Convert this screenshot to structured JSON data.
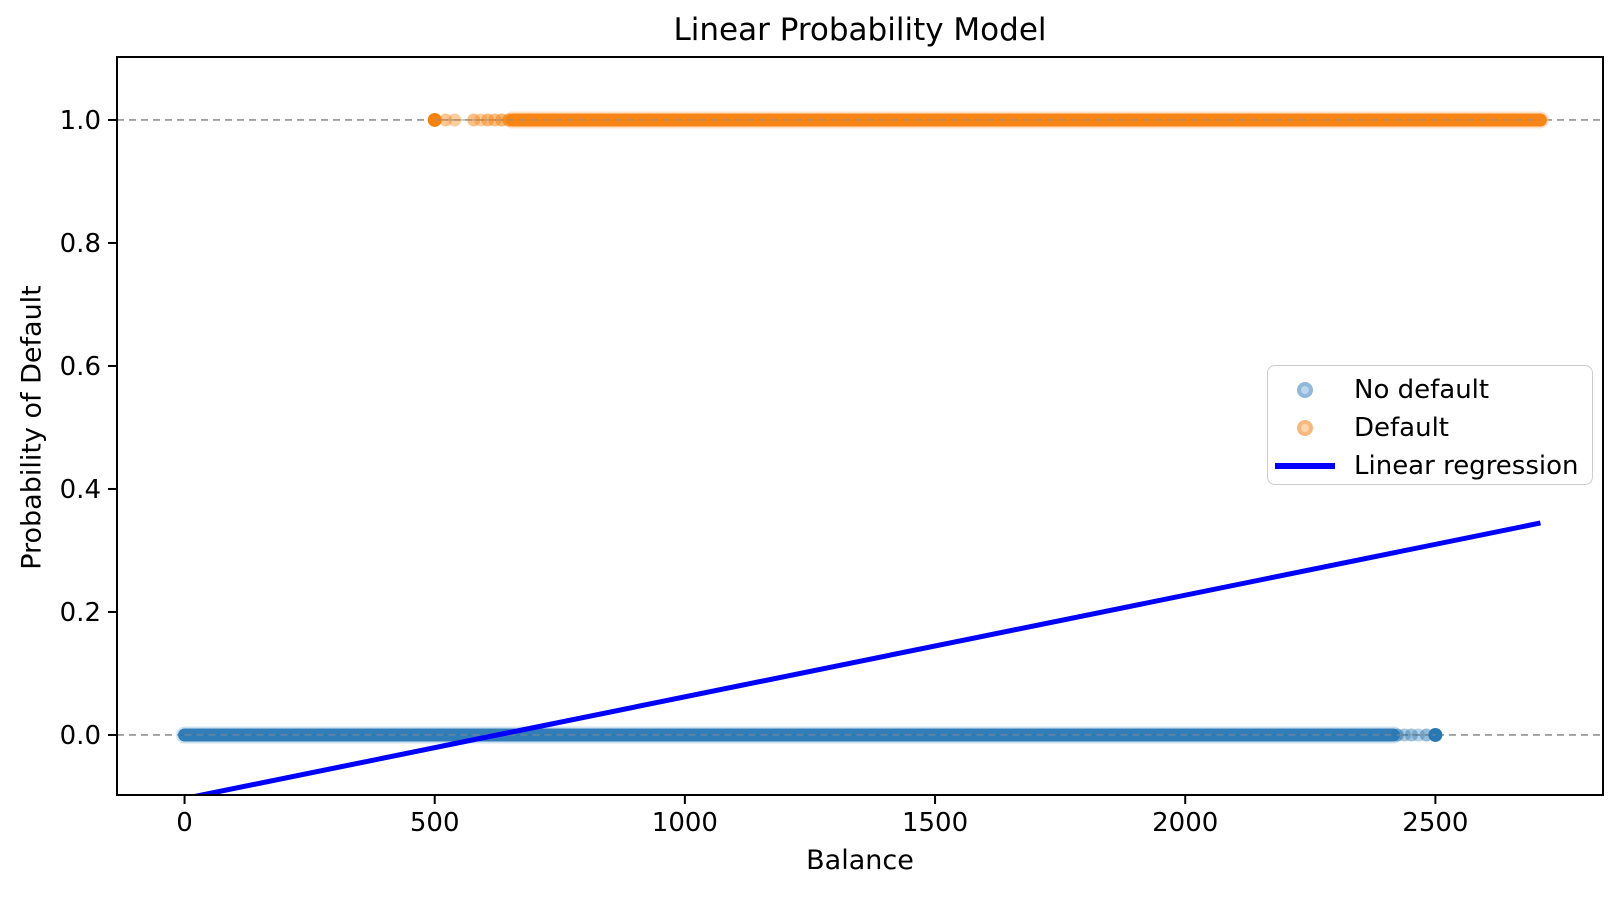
{
  "chart_data": {
    "type": "scatter",
    "title": "Linear Probability Model",
    "xlabel": "Balance",
    "ylabel": "Probability of Default",
    "xlim": [
      -135,
      2835
    ],
    "ylim": [
      -0.0976,
      1.1024
    ],
    "x_ticks": [
      0,
      500,
      1000,
      1500,
      2000,
      2500
    ],
    "x_tick_labels": [
      "0",
      "500",
      "1000",
      "1500",
      "2000",
      "2500"
    ],
    "y_ticks": [
      0.0,
      0.2,
      0.4,
      0.6,
      0.8,
      1.0
    ],
    "y_tick_labels": [
      "0.0",
      "0.2",
      "0.4",
      "0.6",
      "0.8",
      "1.0"
    ],
    "grid": "dashed horizontal lines at y=0 and y=1 only",
    "gridlines_y": [
      0.0,
      1.0
    ],
    "colors": {
      "no_default": "#2878b4",
      "no_default_halo": "#96c0de",
      "default": "#f8820e",
      "default_halo": "#fbbf87",
      "regression_line": "#0000ff",
      "gridline": "#909090",
      "spine": "#000000"
    },
    "series": [
      {
        "name": "No default",
        "y": 0,
        "marker": "dot-strip",
        "color": "#2878b4",
        "halo": "#96c0de",
        "solid_range": [
          0,
          2416
        ],
        "dots": [
          {
            "x": 2424,
            "a": 0.55
          },
          {
            "x": 2438,
            "a": 0.4
          },
          {
            "x": 2452,
            "a": 0.45
          },
          {
            "x": 2466,
            "a": 0.35
          },
          {
            "x": 2482,
            "a": 0.5
          },
          {
            "x": 2500,
            "a": 1.0
          }
        ],
        "x_range": [
          0,
          2500
        ]
      },
      {
        "name": "Default",
        "y": 1,
        "marker": "dot-strip",
        "color": "#f8820e",
        "halo": "#fbbf87",
        "solid_range": [
          655,
          2710
        ],
        "dots": [
          {
            "x": 500,
            "a": 1.0
          },
          {
            "x": 522,
            "a": 0.45
          },
          {
            "x": 540,
            "a": 0.4
          },
          {
            "x": 578,
            "a": 0.5
          },
          {
            "x": 592,
            "a": 0.4
          },
          {
            "x": 606,
            "a": 0.55
          },
          {
            "x": 620,
            "a": 0.5
          },
          {
            "x": 634,
            "a": 0.6
          },
          {
            "x": 648,
            "a": 0.65
          }
        ],
        "x_range": [
          500,
          2710
        ]
      }
    ],
    "regression": {
      "name": "Linear regression",
      "color": "#0000ff",
      "x": [
        0,
        2710
      ],
      "y": [
        -0.1033,
        0.3447
      ],
      "slope_per_unit": 0.000165,
      "intercept": -0.1033,
      "width": 5
    },
    "legend": {
      "position": "center right",
      "entries": [
        {
          "label": "No default",
          "marker": "dot",
          "fill": "#bcd5ea",
          "ring": "#8fb8da"
        },
        {
          "label": "Default",
          "marker": "dot",
          "fill": "#fbd6ae",
          "ring": "#f8b87c"
        },
        {
          "label": "Linear regression",
          "marker": "line",
          "color": "#0000ff"
        }
      ]
    }
  }
}
